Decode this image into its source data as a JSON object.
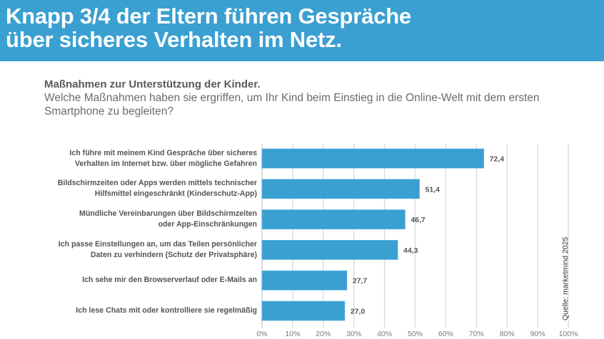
{
  "header": {
    "title_lines": [
      "Knapp 3/4 der Eltern führen Gespräche",
      "über sicheres Verhalten im Netz."
    ],
    "background_color": "#3a9fd1"
  },
  "subtitle": {
    "bold": "Maßnahmen zur Unterstützung der Kinder.",
    "question_lines": [
      "Welche Maßnahmen haben sie ergriffen, um Ihr Kind beim Einstieg in die Online-Welt mit dem ersten",
      "Smartphone zu begleiten?"
    ]
  },
  "source": "Quelle: marketmind 2025",
  "chart_data": {
    "type": "bar",
    "orientation": "horizontal",
    "title": "Maßnahmen zur Unterstützung der Kinder.",
    "xlabel": "",
    "ylabel": "",
    "categories": [
      [
        "Ich führe mit meinem Kind Gespräche über sicheres",
        "Verhalten im Internet bzw. über mögliche Gefahren"
      ],
      [
        "Bildschirmzeiten oder Apps werden mittels technischer",
        "Hilfsmittel eingeschränkt (Kinderschutz-App)"
      ],
      [
        "Mündliche Vereinbarungen über Bildschirmzeiten",
        "oder App-Einschränkungen"
      ],
      [
        "Ich passe Einstellungen an, um das Teilen persönlicher",
        "Daten zu verhindern (Schutz der Privatsphäre)"
      ],
      [
        "Ich sehe mir den Browserverlauf oder E-Mails an"
      ],
      [
        "Ich lese Chats mit oder kontrolliere sie regelmäßig"
      ]
    ],
    "values": [
      72.4,
      51.4,
      46.7,
      44.3,
      27.7,
      27.0
    ],
    "value_labels": [
      "72,4",
      "51,4",
      "46,7",
      "44,3",
      "27,7",
      "27,0"
    ],
    "xlim": [
      0,
      100
    ],
    "x_ticks": [
      0,
      10,
      20,
      30,
      40,
      50,
      60,
      70,
      80,
      90,
      100
    ],
    "x_tick_labels": [
      "0%",
      "10%",
      "20%",
      "30%",
      "40%",
      "50%",
      "60%",
      "70%",
      "80%",
      "90%",
      "100%"
    ],
    "grid": true,
    "bar_color": "#3a9fd1",
    "legend": "none"
  }
}
